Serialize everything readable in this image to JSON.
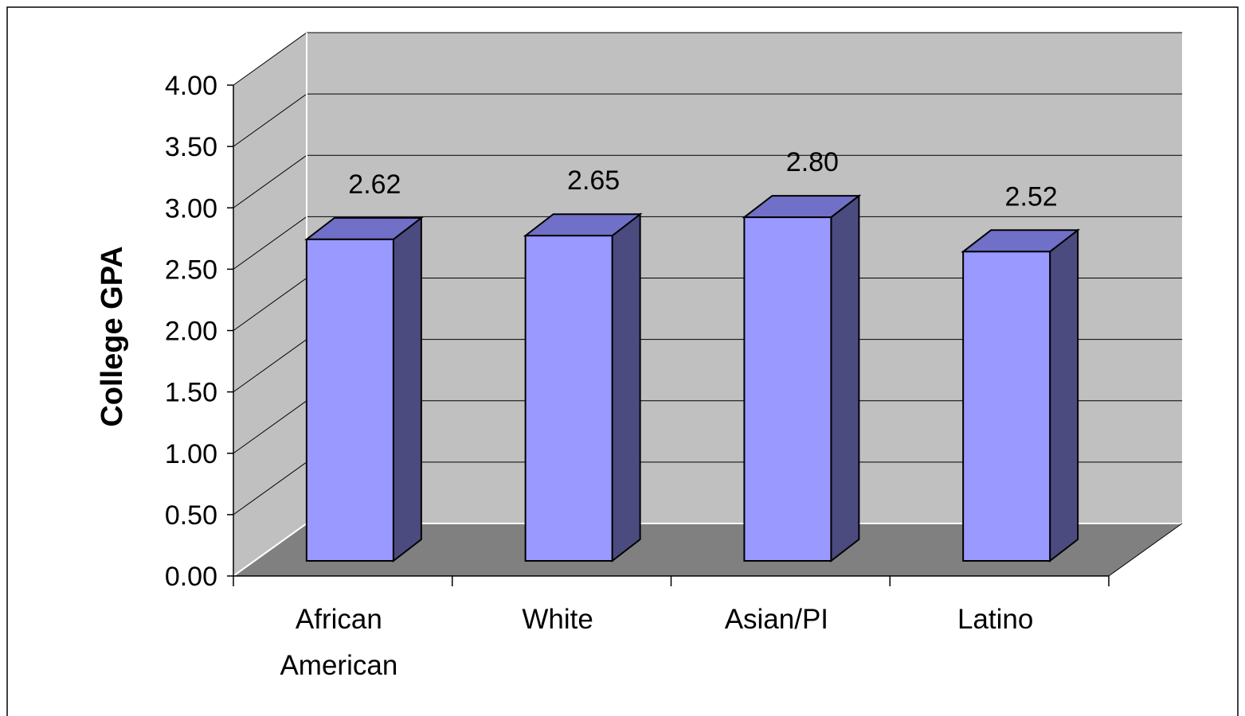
{
  "chart_data": {
    "type": "bar",
    "style": "3d-column",
    "categories": [
      "African American",
      "White",
      "Asian/PI",
      "Latino"
    ],
    "category_lines": [
      [
        "African",
        "American"
      ],
      [
        "White"
      ],
      [
        "Asian/PI"
      ],
      [
        "Latino"
      ]
    ],
    "values": [
      2.62,
      2.65,
      2.8,
      2.52
    ],
    "data_labels": [
      "2.62",
      "2.65",
      "2.80",
      "2.52"
    ],
    "title": "",
    "xlabel": "",
    "ylabel": "College GPA",
    "ylim": [
      0,
      4
    ],
    "ytick_labels": [
      "0.00",
      "0.50",
      "1.00",
      "1.50",
      "2.00",
      "2.50",
      "3.00",
      "3.50",
      "4.00"
    ],
    "grid": true,
    "legend": "none"
  },
  "colors": {
    "bar_front": "#9999ff",
    "bar_top": "#7070c8",
    "bar_side": "#4b4b80",
    "back_wall": "#c0c0c0",
    "side_wall": "#c0c0c0",
    "floor": "#808080",
    "grid": "#000000"
  }
}
